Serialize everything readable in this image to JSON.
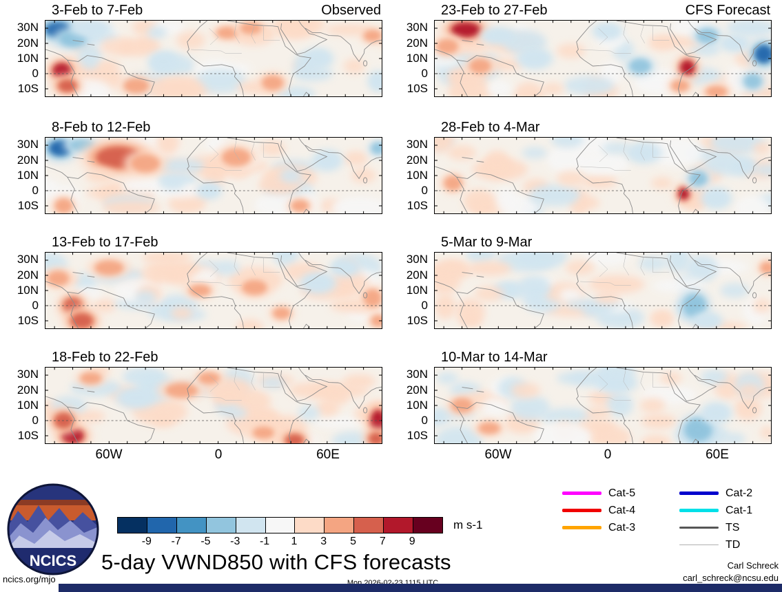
{
  "chart_data": {
    "type": "heatmap",
    "title": "5-day VWND850 with CFS forecasts",
    "lat_ticks": [
      "30N",
      "20N",
      "10N",
      "0",
      "10S"
    ],
    "lon_ticks": [
      "60W",
      "0",
      "60E"
    ],
    "lon_range": [
      -95,
      90
    ],
    "lat_range": [
      -15,
      35
    ],
    "colorbar": {
      "unit": "m s-1",
      "ticks": [
        -9,
        -7,
        -5,
        -3,
        -1,
        1,
        3,
        5,
        7,
        9
      ],
      "colors": [
        "#053061",
        "#2166ac",
        "#4393c3",
        "#92c5de",
        "#d1e5f0",
        "#f7f7f7",
        "#fddbc7",
        "#f4a582",
        "#d6604d",
        "#b2182b",
        "#67001f"
      ]
    },
    "panels": [
      {
        "title": "3-Feb to 7-Feb",
        "corner": "Observed",
        "features": [
          [
            -88,
            29,
            -9,
            7,
            5
          ],
          [
            -80,
            23,
            -5,
            6,
            4
          ],
          [
            -70,
            30,
            -3,
            8,
            4
          ],
          [
            -86,
            2,
            7,
            5,
            5
          ],
          [
            -83,
            -8,
            5,
            5,
            4
          ],
          [
            -55,
            18,
            2,
            10,
            6
          ],
          [
            -30,
            8,
            -3,
            6,
            5
          ],
          [
            -15,
            22,
            2,
            8,
            6
          ],
          [
            5,
            27,
            4,
            6,
            4
          ],
          [
            18,
            30,
            3,
            6,
            4
          ],
          [
            30,
            -6,
            3,
            6,
            5
          ],
          [
            55,
            10,
            -3,
            6,
            5
          ],
          [
            75,
            5,
            2,
            6,
            5
          ],
          [
            85,
            25,
            3,
            5,
            4
          ],
          [
            88,
            -5,
            -3,
            4,
            5
          ],
          [
            -45,
            -8,
            3,
            7,
            5
          ],
          [
            -60,
            5,
            2,
            6,
            4
          ]
        ]
      },
      {
        "title": "8-Feb to 12-Feb",
        "features": [
          [
            -87,
            28,
            -8,
            6,
            5
          ],
          [
            -75,
            30,
            -4,
            7,
            4
          ],
          [
            -55,
            22,
            5,
            12,
            7
          ],
          [
            -40,
            18,
            4,
            8,
            6
          ],
          [
            -65,
            10,
            2,
            8,
            5
          ],
          [
            -25,
            5,
            -2,
            7,
            5
          ],
          [
            -5,
            0,
            -3,
            5,
            4
          ],
          [
            10,
            22,
            3,
            8,
            6
          ],
          [
            30,
            28,
            2,
            7,
            5
          ],
          [
            45,
            -10,
            4,
            5,
            4
          ],
          [
            40,
            10,
            -2,
            6,
            5
          ],
          [
            60,
            20,
            -3,
            6,
            5
          ],
          [
            80,
            10,
            2,
            7,
            5
          ],
          [
            88,
            28,
            -4,
            4,
            4
          ],
          [
            -85,
            -10,
            3,
            5,
            5
          ]
        ]
      },
      {
        "title": "13-Feb to 17-Feb",
        "features": [
          [
            -80,
            0,
            6,
            5,
            5
          ],
          [
            -75,
            -10,
            5,
            6,
            5
          ],
          [
            -88,
            18,
            3,
            6,
            5
          ],
          [
            -60,
            25,
            3,
            8,
            5
          ],
          [
            -40,
            5,
            -2,
            6,
            5
          ],
          [
            -30,
            20,
            2,
            8,
            5
          ],
          [
            -10,
            10,
            3,
            6,
            4
          ],
          [
            5,
            25,
            -2,
            7,
            5
          ],
          [
            20,
            12,
            3,
            7,
            5
          ],
          [
            35,
            -5,
            4,
            5,
            4
          ],
          [
            55,
            15,
            -3,
            7,
            5
          ],
          [
            70,
            25,
            -3,
            6,
            4
          ],
          [
            85,
            5,
            4,
            5,
            6
          ],
          [
            88,
            -10,
            3,
            4,
            4
          ],
          [
            -20,
            -5,
            2,
            6,
            4
          ]
        ]
      },
      {
        "title": "18-Feb to 22-Feb",
        "features": [
          [
            -80,
            -10,
            8,
            6,
            5
          ],
          [
            -85,
            0,
            5,
            5,
            5
          ],
          [
            -70,
            28,
            3,
            6,
            4
          ],
          [
            -45,
            15,
            -3,
            8,
            5
          ],
          [
            -20,
            20,
            3,
            9,
            5
          ],
          [
            -5,
            28,
            3,
            6,
            4
          ],
          [
            10,
            5,
            -2,
            6,
            4
          ],
          [
            25,
            -8,
            3,
            6,
            4
          ],
          [
            42,
            -13,
            6,
            5,
            4
          ],
          [
            50,
            5,
            -2,
            6,
            5
          ],
          [
            65,
            15,
            2,
            7,
            5
          ],
          [
            88,
            0,
            8,
            4,
            7
          ],
          [
            87,
            -12,
            6,
            4,
            4
          ],
          [
            30,
            25,
            -2,
            7,
            4
          ],
          [
            -30,
            0,
            2,
            6,
            4
          ]
        ]
      },
      {
        "title": "23-Feb to 27-Feb",
        "corner": "CFS Forecast",
        "features": [
          [
            -78,
            29,
            8,
            8,
            5
          ],
          [
            -88,
            18,
            4,
            6,
            5
          ],
          [
            -60,
            25,
            -3,
            7,
            4
          ],
          [
            -40,
            10,
            -3,
            7,
            5
          ],
          [
            -70,
            5,
            3,
            6,
            5
          ],
          [
            -20,
            15,
            2,
            8,
            5
          ],
          [
            0,
            28,
            -3,
            6,
            4
          ],
          [
            18,
            5,
            -4,
            6,
            5
          ],
          [
            30,
            20,
            2,
            7,
            5
          ],
          [
            44,
            4,
            7,
            4,
            5
          ],
          [
            40,
            -8,
            4,
            5,
            4
          ],
          [
            55,
            25,
            -4,
            6,
            5
          ],
          [
            70,
            20,
            -3,
            6,
            4
          ],
          [
            86,
            13,
            -9,
            5,
            6
          ],
          [
            80,
            -5,
            -4,
            5,
            5
          ],
          [
            60,
            -12,
            3,
            6,
            4
          ],
          [
            -30,
            -10,
            2,
            6,
            4
          ]
        ]
      },
      {
        "title": "28-Feb to 4-Mar",
        "features": [
          [
            -80,
            25,
            2,
            8,
            5
          ],
          [
            -60,
            15,
            2,
            9,
            6
          ],
          [
            -85,
            5,
            3,
            5,
            5
          ],
          [
            -40,
            25,
            -2,
            7,
            4
          ],
          [
            -20,
            8,
            2,
            8,
            5
          ],
          [
            5,
            28,
            -2,
            8,
            4
          ],
          [
            20,
            25,
            -3,
            7,
            5
          ],
          [
            42,
            -2,
            7,
            3,
            4
          ],
          [
            50,
            8,
            -4,
            5,
            5
          ],
          [
            60,
            -5,
            -3,
            6,
            5
          ],
          [
            75,
            15,
            -2,
            7,
            5
          ],
          [
            85,
            28,
            2,
            5,
            4
          ],
          [
            30,
            5,
            2,
            6,
            4
          ],
          [
            -10,
            -8,
            2,
            6,
            4
          ]
        ]
      },
      {
        "title": "5-Mar to 9-Mar",
        "features": [
          [
            -85,
            25,
            2,
            7,
            5
          ],
          [
            -65,
            8,
            2,
            8,
            5
          ],
          [
            -40,
            15,
            -2,
            8,
            5
          ],
          [
            -15,
            25,
            2,
            8,
            5
          ],
          [
            0,
            5,
            2,
            7,
            4
          ],
          [
            25,
            28,
            -2,
            8,
            5
          ],
          [
            48,
            0,
            -5,
            5,
            6
          ],
          [
            55,
            -10,
            -3,
            6,
            4
          ],
          [
            70,
            10,
            -2,
            8,
            5
          ],
          [
            85,
            0,
            2,
            5,
            5
          ],
          [
            30,
            -8,
            2,
            6,
            4
          ],
          [
            -75,
            -10,
            2,
            6,
            4
          ],
          [
            88,
            25,
            3,
            4,
            4
          ]
        ]
      },
      {
        "title": "10-Mar to 14-Mar",
        "features": [
          [
            -80,
            10,
            3,
            6,
            5
          ],
          [
            -65,
            -5,
            3,
            6,
            4
          ],
          [
            -88,
            28,
            -2,
            6,
            4
          ],
          [
            -45,
            20,
            2,
            8,
            5
          ],
          [
            -20,
            28,
            -2,
            8,
            4
          ],
          [
            5,
            25,
            -3,
            8,
            5
          ],
          [
            -5,
            5,
            2,
            7,
            4
          ],
          [
            25,
            10,
            2,
            7,
            5
          ],
          [
            50,
            -6,
            -5,
            6,
            6
          ],
          [
            60,
            5,
            -3,
            6,
            5
          ],
          [
            78,
            20,
            2,
            6,
            4
          ],
          [
            88,
            -8,
            2,
            4,
            4
          ],
          [
            35,
            28,
            2,
            6,
            4
          ],
          [
            70,
            -12,
            -2,
            6,
            4
          ]
        ]
      }
    ],
    "legend": [
      {
        "label": "Cat-5",
        "color": "#ff00ff",
        "weight": 5,
        "col": 0
      },
      {
        "label": "Cat-4",
        "color": "#f00000",
        "weight": 5,
        "col": 0
      },
      {
        "label": "Cat-3",
        "color": "#ffa400",
        "weight": 5,
        "col": 0
      },
      {
        "label": "Cat-2",
        "color": "#0000cd",
        "weight": 5,
        "col": 1
      },
      {
        "label": "Cat-1",
        "color": "#00e0e8",
        "weight": 5,
        "col": 1
      },
      {
        "label": "TS",
        "color": "#555555",
        "weight": 2.5,
        "col": 1
      },
      {
        "label": "TD",
        "color": "#b0b0b0",
        "weight": 1.5,
        "col": 1
      }
    ]
  },
  "logo": {
    "text": "NCICS"
  },
  "footer": {
    "site": "ncics.org/mjo",
    "timestamp": "Mon 2026-02-23 1115 UTC",
    "credit": "Carl Schreck",
    "email": "carl_schreck@ncsu.edu"
  }
}
